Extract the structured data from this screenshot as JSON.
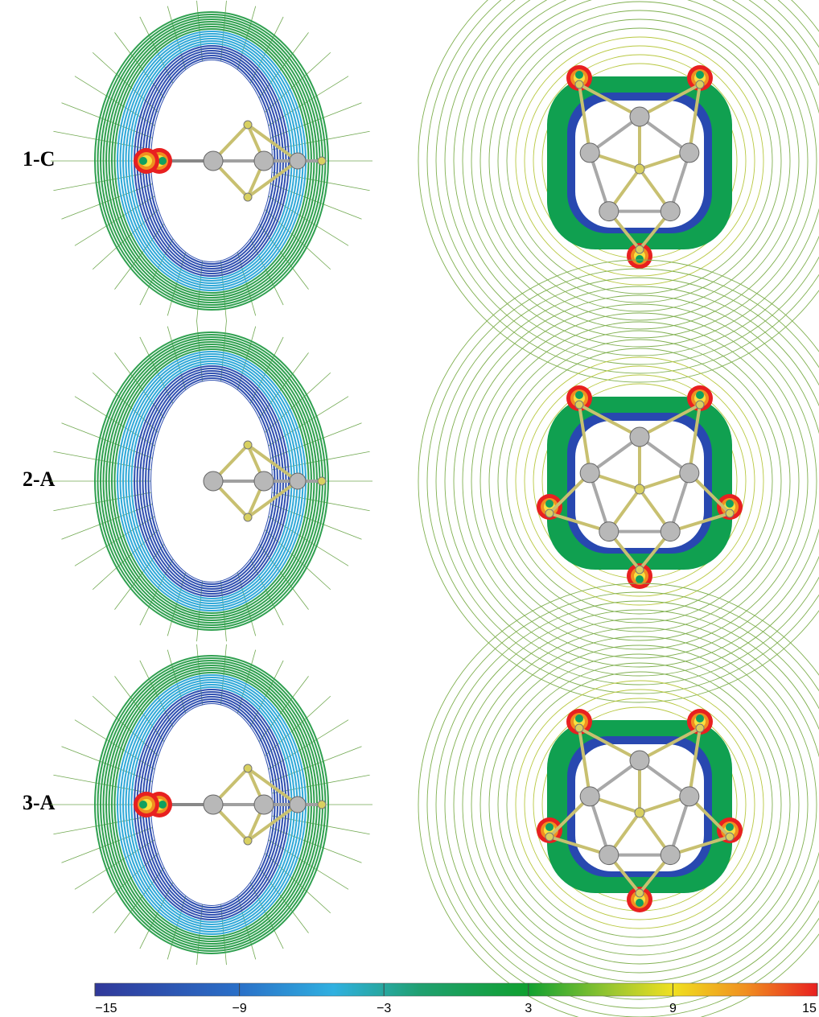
{
  "panels": {
    "labels": [
      "1-C",
      "2-A",
      "3-A"
    ]
  },
  "colorbar": {
    "lim": [
      -15,
      15
    ],
    "ticks": [
      {
        "value": -15,
        "label": "−15"
      },
      {
        "value": -9,
        "label": "−9"
      },
      {
        "value": -3,
        "label": "−3"
      },
      3,
      9,
      15
    ]
  }
}
